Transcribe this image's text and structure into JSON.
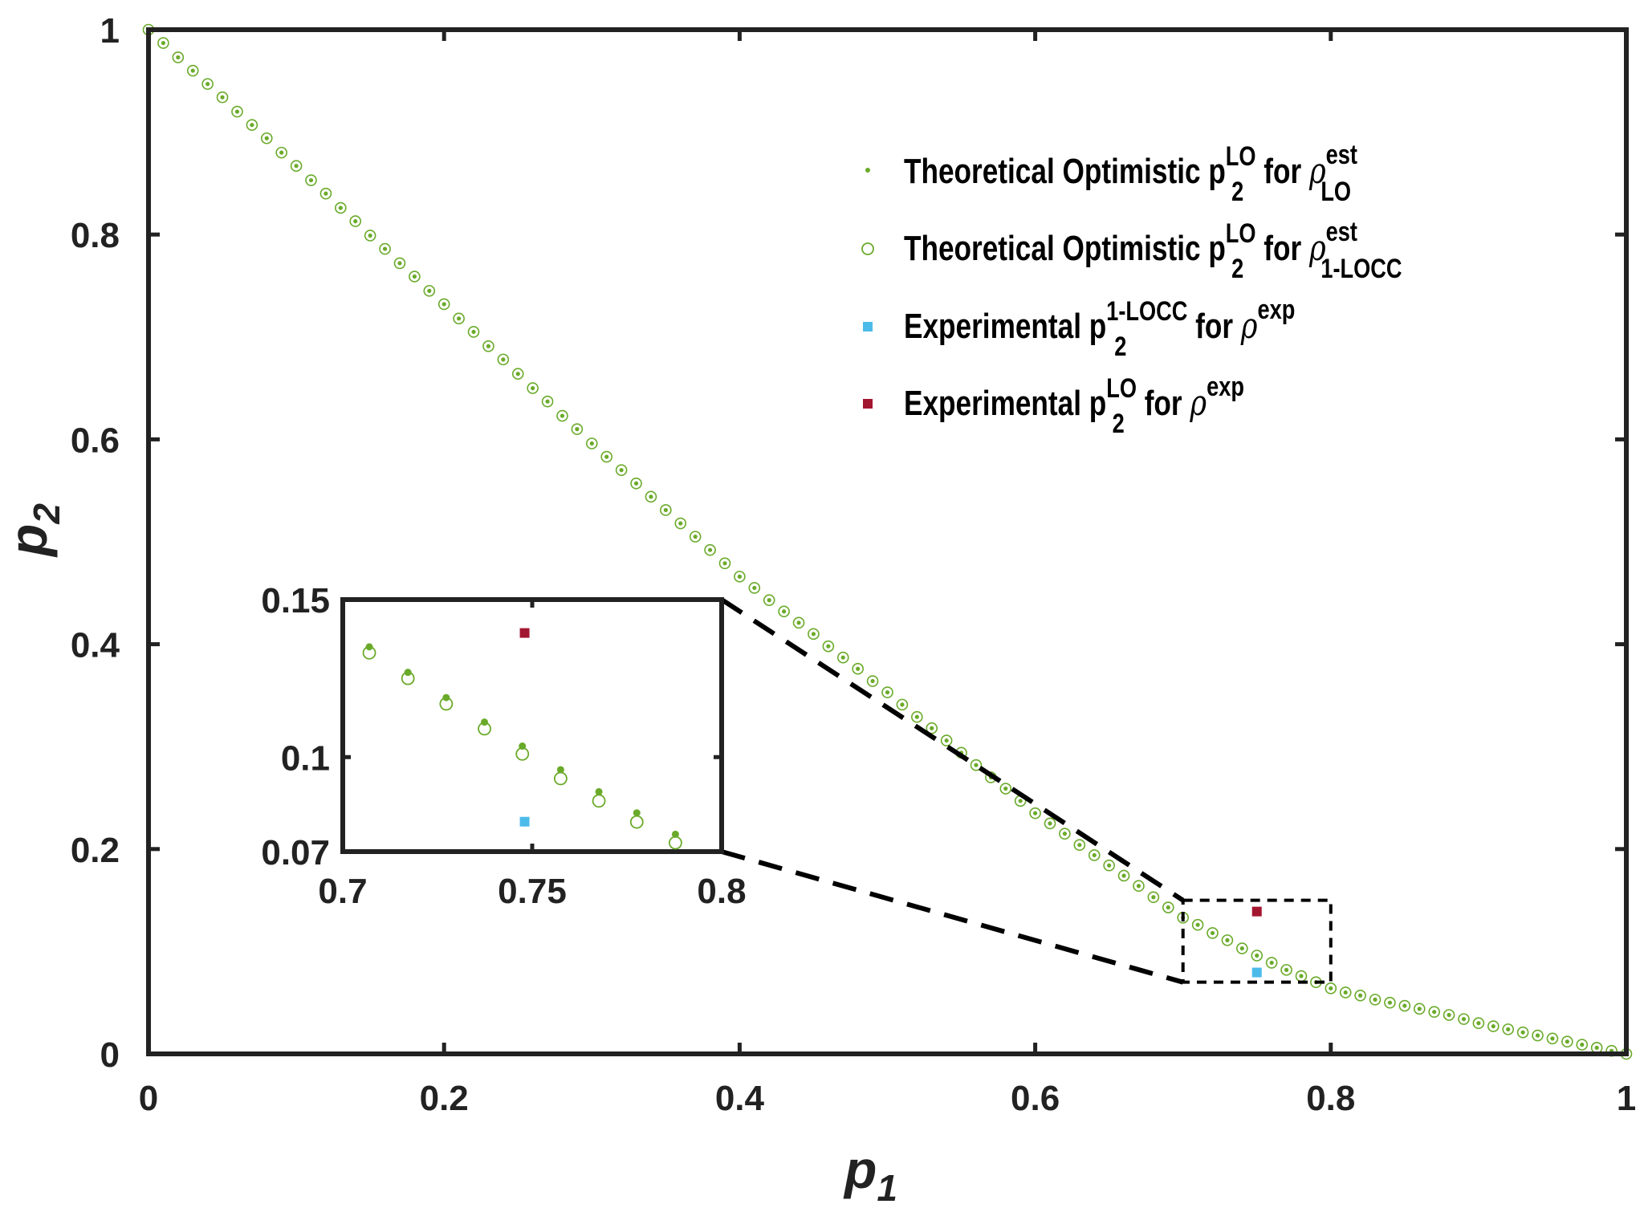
{
  "chart_data": {
    "type": "scatter",
    "xlabel": "p",
    "xlabel_sub": "1",
    "ylabel": "p",
    "ylabel_sub": "2",
    "xlim": [
      0,
      1
    ],
    "ylim": [
      0,
      1
    ],
    "xticks": [
      "0",
      "0.2",
      "0.4",
      "0.6",
      "0.8",
      "1"
    ],
    "yticks": [
      "0",
      "0.2",
      "0.4",
      "0.6",
      "0.8",
      "1"
    ],
    "grid": false,
    "legend_position": "top-right",
    "series": [
      {
        "name": "Theoretical Optimistic p2^LO for rho_LO^est",
        "marker": "dot",
        "color": "#6aaa2a",
        "x_start": 0,
        "x_step": 0.01,
        "values": [
          1,
          0.987,
          0.973,
          0.96,
          0.947,
          0.934,
          0.92,
          0.907,
          0.894,
          0.88,
          0.867,
          0.853,
          0.84,
          0.826,
          0.813,
          0.799,
          0.786,
          0.772,
          0.759,
          0.745,
          0.732,
          0.718,
          0.705,
          0.691,
          0.678,
          0.664,
          0.65,
          0.637,
          0.623,
          0.61,
          0.596,
          0.583,
          0.57,
          0.557,
          0.544,
          0.531,
          0.518,
          0.505,
          0.492,
          0.479,
          0.466,
          0.455,
          0.443,
          0.432,
          0.421,
          0.41,
          0.398,
          0.387,
          0.376,
          0.364,
          0.353,
          0.341,
          0.329,
          0.318,
          0.306,
          0.294,
          0.282,
          0.27,
          0.259,
          0.247,
          0.235,
          0.225,
          0.215,
          0.204,
          0.194,
          0.184,
          0.174,
          0.164,
          0.153,
          0.143,
          0.133,
          0.126,
          0.118,
          0.111,
          0.103,
          0.096,
          0.089,
          0.082,
          0.076,
          0.07,
          0.064,
          0.06,
          0.057,
          0.053,
          0.05,
          0.047,
          0.044,
          0.041,
          0.038,
          0.034,
          0.03,
          0.027,
          0.024,
          0.021,
          0.018,
          0.015,
          0.012,
          0.009,
          0.006,
          0.003,
          0
        ]
      },
      {
        "name": "Theoretical Optimistic p2^LO for rho_1-LOCC^est",
        "marker": "open-circle",
        "color": "#6aaa2a",
        "x_start": 0,
        "x_step": 0.01,
        "same_values_as": 0
      },
      {
        "name": "Experimental p2^1-LOCC for rho^exp",
        "marker": "square",
        "color": "#4dbbea",
        "x": [
          0.75
        ],
        "y": [
          0.0795
        ]
      },
      {
        "name": "Experimental p2^LO for rho^exp",
        "marker": "square",
        "color": "#a31630",
        "x": [
          0.75
        ],
        "y": [
          0.139
        ]
      }
    ],
    "legend": [
      {
        "text": "Theoretical Optimistic p",
        "sub": "2",
        "sup": "LO",
        "mid": " for ",
        "rho": "ρ",
        "rho_sup": "est",
        "rho_sub": "LO"
      },
      {
        "text": "Theoretical Optimistic p",
        "sub": "2",
        "sup": "LO",
        "mid": " for ",
        "rho": "ρ",
        "rho_sup": "est",
        "rho_sub": "1-LOCC"
      },
      {
        "text": "Experimental p",
        "sub": "2",
        "sup": "1-LOCC",
        "mid": " for ",
        "rho": "ρ",
        "rho_sup": "exp",
        "rho_sub": ""
      },
      {
        "text": "Experimental p",
        "sub": "2",
        "sup": "LO",
        "mid": " for ",
        "rho": "ρ",
        "rho_sup": "exp",
        "rho_sub": ""
      }
    ],
    "zoom_region": {
      "xlim": [
        0.7,
        0.8
      ],
      "ylim": [
        0.07,
        0.15
      ]
    },
    "inset": {
      "xlim": [
        0.7,
        0.8
      ],
      "ylim": [
        0.07,
        0.15
      ],
      "xticks": [
        "0.7",
        "0.75",
        "0.8"
      ],
      "yticks": [
        "0.07",
        "0.1",
        "0.15"
      ],
      "xtick_values": [
        0.7,
        0.75,
        0.8
      ],
      "ytick_values": [
        0.07,
        0.1,
        0.15
      ],
      "dots": {
        "x": [
          0.707,
          0.7172,
          0.7273,
          0.7374,
          0.7474,
          0.7575,
          0.7676,
          0.7776,
          0.7878
        ],
        "y": [
          0.135,
          0.1269,
          0.1189,
          0.1111,
          0.1035,
          0.096,
          0.089,
          0.0823,
          0.0755
        ]
      },
      "circles": {
        "x": [
          0.707,
          0.7172,
          0.7273,
          0.7374,
          0.7474,
          0.7575,
          0.7676,
          0.7776,
          0.7878
        ],
        "y": [
          0.1331,
          0.125,
          0.1169,
          0.109,
          0.101,
          0.0932,
          0.0861,
          0.0794,
          0.0728
        ]
      },
      "blue": {
        "x": 0.748,
        "y": 0.0795
      },
      "red": {
        "x": 0.748,
        "y": 0.1394
      }
    }
  }
}
